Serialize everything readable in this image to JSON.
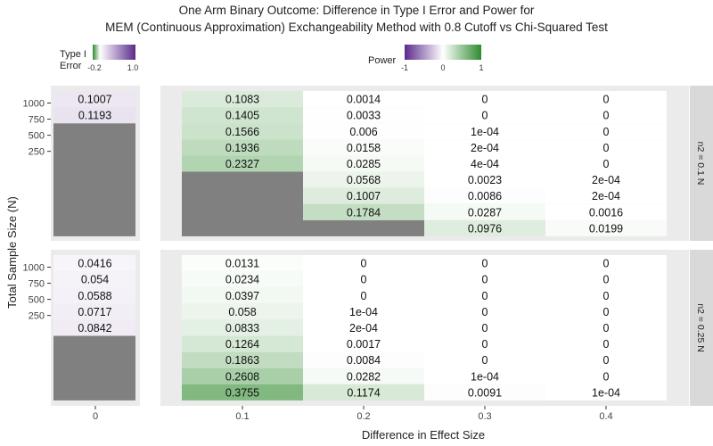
{
  "chart_data": {
    "type": "heatmap",
    "title_lines": [
      "One Arm Binary Outcome: Difference in Type I Error and Power for",
      "MEM (Continuous Approximation) Exchangeability Method with 0.8 Cutoff vs Chi-Squared Test"
    ],
    "xlabel": "Difference in Effect Size",
    "ylabel": "Total Sample Size (N)",
    "x_ticks_left": [
      "0"
    ],
    "x_ticks_right": [
      "0.1",
      "0.2",
      "0.3",
      "0.4"
    ],
    "y_ticks": [
      "1000",
      "750",
      "500",
      "250"
    ],
    "legend_type1": {
      "title_line1": "Type I",
      "title_line2": "Error",
      "ticks": [
        "-0.2",
        "1.0"
      ],
      "low_color": "#2e8b2e",
      "high_color": "#5b2a8c"
    },
    "legend_power": {
      "title": "Power",
      "ticks": [
        "-1",
        "0",
        "1"
      ],
      "low_color": "#5b2a8c",
      "mid_color": "#ffffff",
      "high_color": "#2e8b2e"
    },
    "facets": [
      {
        "strip": "n2 = 0.1 N",
        "type1_error": {
          "effect": 0,
          "rows": [
            {
              "n": 1000,
              "value": 0.1007,
              "label": "0.1007"
            },
            {
              "n": 950,
              "value": 0.1193,
              "label": "0.1193"
            }
          ],
          "missing_below_n": 900
        },
        "power": {
          "columns": [
            {
              "effect": 0.1,
              "cells": [
                {
                  "n": 1000,
                  "value": 0.1083,
                  "label": "0.1083"
                },
                {
                  "n": 950,
                  "value": 0.1405,
                  "label": "0.1405"
                },
                {
                  "n": 900,
                  "value": 0.1566,
                  "label": "0.1566"
                },
                {
                  "n": 850,
                  "value": 0.1936,
                  "label": "0.1936"
                },
                {
                  "n": 800,
                  "value": 0.2327,
                  "label": "0.2327"
                }
              ],
              "missing_below_n": 750
            },
            {
              "effect": 0.2,
              "cells": [
                {
                  "n": 1000,
                  "value": 0.0014,
                  "label": "0.0014"
                },
                {
                  "n": 950,
                  "value": 0.0033,
                  "label": "0.0033"
                },
                {
                  "n": 900,
                  "value": 0.006,
                  "label": "0.006"
                },
                {
                  "n": 850,
                  "value": 0.0158,
                  "label": "0.0158"
                },
                {
                  "n": 800,
                  "value": 0.0285,
                  "label": "0.0285"
                },
                {
                  "n": 750,
                  "value": 0.0568,
                  "label": "0.0568"
                },
                {
                  "n": 700,
                  "value": 0.1007,
                  "label": "0.1007"
                },
                {
                  "n": 650,
                  "value": 0.1784,
                  "label": "0.1784"
                }
              ],
              "missing_below_n": 600
            },
            {
              "effect": 0.3,
              "cells": [
                {
                  "n": 1000,
                  "value": 0,
                  "label": "0"
                },
                {
                  "n": 950,
                  "value": 0,
                  "label": "0"
                },
                {
                  "n": 900,
                  "value": 0.0001,
                  "label": "1e-04"
                },
                {
                  "n": 850,
                  "value": 0.0002,
                  "label": "2e-04"
                },
                {
                  "n": 800,
                  "value": 0.0004,
                  "label": "4e-04"
                },
                {
                  "n": 750,
                  "value": 0.0023,
                  "label": "0.0023"
                },
                {
                  "n": 700,
                  "value": 0.0086,
                  "label": "0.0086"
                },
                {
                  "n": 650,
                  "value": 0.0287,
                  "label": "0.0287"
                },
                {
                  "n": 600,
                  "value": 0.0976,
                  "label": "0.0976"
                }
              ]
            },
            {
              "effect": 0.4,
              "cells": [
                {
                  "n": 1000,
                  "value": 0,
                  "label": "0"
                },
                {
                  "n": 950,
                  "value": 0,
                  "label": "0"
                },
                {
                  "n": 900,
                  "value": 0,
                  "label": "0"
                },
                {
                  "n": 850,
                  "value": 0,
                  "label": "0"
                },
                {
                  "n": 800,
                  "value": 0,
                  "label": "0"
                },
                {
                  "n": 750,
                  "value": 0.0002,
                  "label": "2e-04"
                },
                {
                  "n": 700,
                  "value": 0.0002,
                  "label": "2e-04"
                },
                {
                  "n": 650,
                  "value": 0.0016,
                  "label": "0.0016"
                },
                {
                  "n": 600,
                  "value": 0.0199,
                  "label": "0.0199"
                }
              ]
            }
          ]
        }
      },
      {
        "strip": "n2 = 0.25 N",
        "type1_error": {
          "effect": 0,
          "rows": [
            {
              "n": 1000,
              "value": 0.0416,
              "label": "0.0416"
            },
            {
              "n": 950,
              "value": 0.054,
              "label": "0.054"
            },
            {
              "n": 900,
              "value": 0.0588,
              "label": "0.0588"
            },
            {
              "n": 850,
              "value": 0.0717,
              "label": "0.0717"
            },
            {
              "n": 800,
              "value": 0.0842,
              "label": "0.0842"
            }
          ],
          "missing_below_n": 750
        },
        "power": {
          "columns": [
            {
              "effect": 0.1,
              "cells": [
                {
                  "n": 1000,
                  "value": 0.0131,
                  "label": "0.0131"
                },
                {
                  "n": 950,
                  "value": 0.0234,
                  "label": "0.0234"
                },
                {
                  "n": 900,
                  "value": 0.0397,
                  "label": "0.0397"
                },
                {
                  "n": 850,
                  "value": 0.058,
                  "label": "0.058"
                },
                {
                  "n": 800,
                  "value": 0.0833,
                  "label": "0.0833"
                },
                {
                  "n": 750,
                  "value": 0.1264,
                  "label": "0.1264"
                },
                {
                  "n": 700,
                  "value": 0.1863,
                  "label": "0.1863"
                },
                {
                  "n": 650,
                  "value": 0.2608,
                  "label": "0.2608"
                },
                {
                  "n": 600,
                  "value": 0.3755,
                  "label": "0.3755"
                }
              ]
            },
            {
              "effect": 0.2,
              "cells": [
                {
                  "n": 1000,
                  "value": 0,
                  "label": "0"
                },
                {
                  "n": 950,
                  "value": 0,
                  "label": "0"
                },
                {
                  "n": 900,
                  "value": 0,
                  "label": "0"
                },
                {
                  "n": 850,
                  "value": 0.0001,
                  "label": "1e-04"
                },
                {
                  "n": 800,
                  "value": 0.0002,
                  "label": "2e-04"
                },
                {
                  "n": 750,
                  "value": 0.0017,
                  "label": "0.0017"
                },
                {
                  "n": 700,
                  "value": 0.0084,
                  "label": "0.0084"
                },
                {
                  "n": 650,
                  "value": 0.0282,
                  "label": "0.0282"
                },
                {
                  "n": 600,
                  "value": 0.1174,
                  "label": "0.1174"
                }
              ]
            },
            {
              "effect": 0.3,
              "cells": [
                {
                  "n": 1000,
                  "value": 0,
                  "label": "0"
                },
                {
                  "n": 950,
                  "value": 0,
                  "label": "0"
                },
                {
                  "n": 900,
                  "value": 0,
                  "label": "0"
                },
                {
                  "n": 850,
                  "value": 0,
                  "label": "0"
                },
                {
                  "n": 800,
                  "value": 0,
                  "label": "0"
                },
                {
                  "n": 750,
                  "value": 0,
                  "label": "0"
                },
                {
                  "n": 700,
                  "value": 0,
                  "label": "0"
                },
                {
                  "n": 650,
                  "value": 0.0001,
                  "label": "1e-04"
                },
                {
                  "n": 600,
                  "value": 0.0091,
                  "label": "0.0091"
                }
              ]
            },
            {
              "effect": 0.4,
              "cells": [
                {
                  "n": 1000,
                  "value": 0,
                  "label": "0"
                },
                {
                  "n": 950,
                  "value": 0,
                  "label": "0"
                },
                {
                  "n": 900,
                  "value": 0,
                  "label": "0"
                },
                {
                  "n": 850,
                  "value": 0,
                  "label": "0"
                },
                {
                  "n": 800,
                  "value": 0,
                  "label": "0"
                },
                {
                  "n": 750,
                  "value": 0,
                  "label": "0"
                },
                {
                  "n": 700,
                  "value": 0,
                  "label": "0"
                },
                {
                  "n": 650,
                  "value": 0,
                  "label": "0"
                },
                {
                  "n": 600,
                  "value": 0.0001,
                  "label": "1e-04"
                }
              ]
            }
          ]
        }
      }
    ],
    "missing_color": "#808080",
    "panel_background": "#ebebeb",
    "strip_background": "#d9d9d9"
  }
}
